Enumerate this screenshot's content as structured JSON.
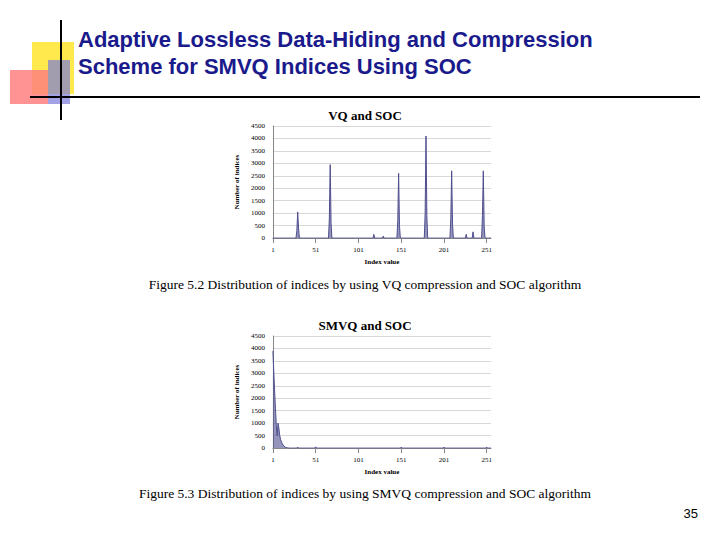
{
  "slide": {
    "title": [
      "Adaptive Lossless Data-Hiding and Compression",
      "Scheme for SMVQ Indices Using SOC"
    ],
    "page_number": 35
  },
  "chart_data": [
    {
      "type": "line",
      "title": "VQ and SOC",
      "caption": "Figure 5.2 Distribution of indices by using VQ compression and SOC algorithm",
      "x_label": "Index value",
      "y_label": "Number of indices",
      "x": [
        1,
        28,
        29,
        30,
        31,
        32,
        66,
        67,
        68,
        69,
        70,
        118,
        119,
        120,
        129,
        130,
        131,
        146,
        147,
        148,
        149,
        150,
        178,
        179,
        180,
        181,
        182,
        208,
        209,
        210,
        211,
        212,
        226,
        227,
        228,
        234,
        235,
        236,
        245,
        246,
        247,
        248,
        249,
        256
      ],
      "values": [
        0,
        0,
        300,
        1050,
        400,
        0,
        0,
        800,
        2950,
        600,
        0,
        0,
        150,
        0,
        0,
        80,
        0,
        0,
        700,
        2600,
        500,
        0,
        0,
        1000,
        4100,
        900,
        0,
        0,
        800,
        2700,
        600,
        0,
        0,
        150,
        0,
        0,
        250,
        0,
        0,
        900,
        2700,
        500,
        0,
        0
      ],
      "color": "#4f4f8f",
      "xlim": [
        1,
        256
      ],
      "xticks": [
        1,
        51,
        101,
        151,
        201,
        251
      ],
      "ylim": [
        0,
        4500
      ],
      "yticks": [
        0,
        500,
        1000,
        1500,
        2000,
        2500,
        3000,
        3500,
        4000,
        4500
      ],
      "grid": true
    },
    {
      "type": "line",
      "title": "SMVQ and SOC",
      "caption": "Figure 5.3 Distribution of indices by using SMVQ compression and SOC algorithm",
      "x_label": "Index value",
      "y_label": "Number of indices",
      "x": [
        1,
        2,
        3,
        4,
        5,
        6,
        7,
        8,
        9,
        10,
        11,
        12,
        13,
        14,
        15,
        16,
        18,
        20,
        29,
        30,
        31,
        50,
        51,
        52,
        150,
        151,
        152,
        200,
        201,
        202,
        250,
        251,
        252,
        256
      ],
      "values": [
        3900,
        3100,
        2300,
        1600,
        900,
        500,
        1000,
        800,
        500,
        350,
        250,
        180,
        120,
        80,
        50,
        30,
        10,
        0,
        0,
        40,
        0,
        0,
        50,
        0,
        0,
        40,
        0,
        0,
        40,
        0,
        0,
        40,
        0,
        0
      ],
      "color": "#4f4f8f",
      "xlim": [
        1,
        256
      ],
      "xticks": [
        1,
        51,
        101,
        151,
        201,
        251
      ],
      "ylim": [
        0,
        4500
      ],
      "yticks": [
        0,
        500,
        1000,
        1500,
        2000,
        2500,
        3000,
        3500,
        4000,
        4500
      ],
      "grid": true
    }
  ]
}
